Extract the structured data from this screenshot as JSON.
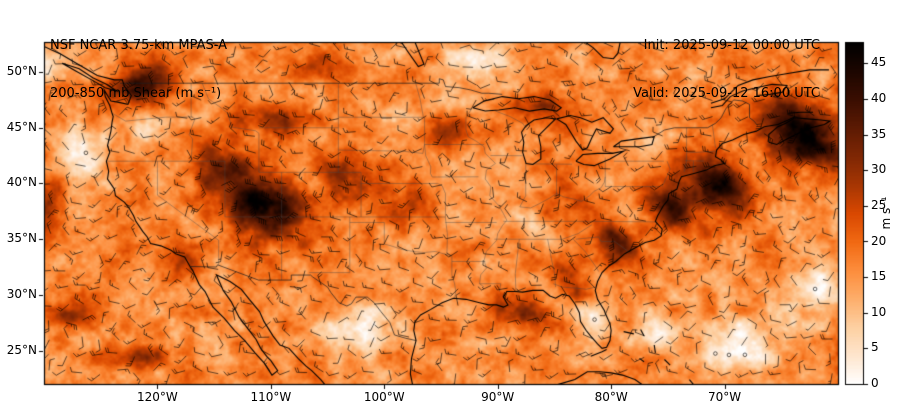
{
  "header": {
    "title_line1": "NSF NCAR 3.75-km MPAS-A",
    "title_line2": "200-850 mb Shear (m s⁻¹)",
    "init_label": "Init: 2025-09-12 00:00 UTC",
    "valid_label": "Valid: 2025-09-12 16:00 UTC"
  },
  "chart_data": {
    "type": "heatmap",
    "title": "200-850 mb Shear (m s⁻¹)",
    "model": "NSF NCAR 3.75-km MPAS-A",
    "init_time": "2025-09-12 00:00 UTC",
    "valid_time": "2025-09-12 16:00 UTC",
    "units": "m s⁻¹",
    "overlay": "wind barbs of 200-850 mb shear vector",
    "extent": {
      "lon_min": -130,
      "lon_max": -60,
      "lat_min": 22,
      "lat_max": 52.7
    },
    "xticks": {
      "labels": [
        "120°W",
        "110°W",
        "100°W",
        "90°W",
        "80°W",
        "70°W"
      ],
      "lons": [
        -120,
        -110,
        -100,
        -90,
        -80,
        -70
      ]
    },
    "yticks": {
      "labels": [
        "50°N",
        "45°N",
        "40°N",
        "35°N",
        "30°N",
        "25°N"
      ],
      "lats": [
        50,
        45,
        40,
        35,
        30,
        25
      ]
    },
    "colorbar": {
      "label": "m s⁻¹",
      "ticks": [
        0,
        5,
        10,
        15,
        20,
        25,
        30,
        35,
        40,
        45
      ],
      "vmin": 0,
      "vmax": 48,
      "stops": [
        {
          "v": 0,
          "c": "#ffffff"
        },
        {
          "v": 4,
          "c": "#fee6ce"
        },
        {
          "v": 8,
          "c": "#fdd0a2"
        },
        {
          "v": 12,
          "c": "#fdae6b"
        },
        {
          "v": 16,
          "c": "#fd8d3c"
        },
        {
          "v": 20,
          "c": "#f16913"
        },
        {
          "v": 24,
          "c": "#d94801"
        },
        {
          "v": 28,
          "c": "#a63603"
        },
        {
          "v": 32,
          "c": "#7f2704"
        },
        {
          "v": 36,
          "c": "#5c1a03"
        },
        {
          "v": 40,
          "c": "#3a0e01"
        },
        {
          "v": 44,
          "c": "#1c0600"
        },
        {
          "v": 48,
          "c": "#000000"
        }
      ]
    },
    "field": {
      "base": 16,
      "noise_large": 5,
      "noise_small": 3,
      "highs": [
        {
          "lon": -110.5,
          "lat": 37.8,
          "amp": 30,
          "sx": 3.6,
          "sy": 2.8,
          "rot": -25
        },
        {
          "lon": -114.5,
          "lat": 41.5,
          "amp": 18,
          "sx": 2.6,
          "sy": 2.2,
          "rot": -35
        },
        {
          "lon": -121.5,
          "lat": 48.8,
          "amp": 24,
          "sx": 2.6,
          "sy": 1.7,
          "rot": 20
        },
        {
          "lon": -110,
          "lat": 45.8,
          "amp": 13,
          "sx": 3.4,
          "sy": 1.5,
          "rot": -5
        },
        {
          "lon": -103.5,
          "lat": 40.8,
          "amp": 14,
          "sx": 2.8,
          "sy": 1.8,
          "rot": -30
        },
        {
          "lon": -99,
          "lat": 38.5,
          "amp": 10,
          "sx": 3,
          "sy": 2,
          "rot": -10
        },
        {
          "lon": -94.5,
          "lat": 44.6,
          "amp": 13,
          "sx": 2.6,
          "sy": 1.5,
          "rot": 15
        },
        {
          "lon": -86,
          "lat": 46.6,
          "amp": 13,
          "sx": 3,
          "sy": 1.5,
          "rot": -12
        },
        {
          "lon": -88,
          "lat": 28.3,
          "amp": 16,
          "sx": 2.6,
          "sy": 1.4,
          "rot": -25
        },
        {
          "lon": -84,
          "lat": 31.5,
          "amp": 14,
          "sx": 2.4,
          "sy": 1.3,
          "rot": -38
        },
        {
          "lon": -79.5,
          "lat": 34.5,
          "amp": 22,
          "sx": 2.4,
          "sy": 1.5,
          "rot": -42
        },
        {
          "lon": -74.5,
          "lat": 37.5,
          "amp": 22,
          "sx": 2.6,
          "sy": 1.7,
          "rot": -35
        },
        {
          "lon": -70.5,
          "lat": 40,
          "amp": 30,
          "sx": 3.2,
          "sy": 2.1,
          "rot": -32
        },
        {
          "lon": -63,
          "lat": 44.5,
          "amp": 34,
          "sx": 3.6,
          "sy": 2.6,
          "rot": -30
        },
        {
          "lon": -127.5,
          "lat": 28,
          "amp": 15,
          "sx": 2.4,
          "sy": 1.1,
          "rot": 12
        },
        {
          "lon": -122,
          "lat": 24.5,
          "amp": 14,
          "sx": 3,
          "sy": 1.2,
          "rot": 6
        },
        {
          "lon": -129.5,
          "lat": 38,
          "amp": 12,
          "sx": 1.3,
          "sy": 2.6,
          "rot": -15
        },
        {
          "lon": -118,
          "lat": 33,
          "amp": 10,
          "sx": 2,
          "sy": 1.4,
          "rot": -25
        },
        {
          "lon": -105.5,
          "lat": 50.5,
          "amp": 10,
          "sx": 3,
          "sy": 1.5,
          "rot": 5
        },
        {
          "lon": -84,
          "lat": 38.5,
          "amp": 8,
          "sx": 2.6,
          "sy": 1.8,
          "rot": -35
        }
      ],
      "lows": [
        {
          "lon": -126.5,
          "lat": 42.5,
          "amp": 15,
          "sx": 2.2,
          "sy": 2.4,
          "rot": 0
        },
        {
          "lon": -121,
          "lat": 44.5,
          "amp": 8,
          "sx": 1.8,
          "sy": 1.1,
          "rot": -10
        },
        {
          "lon": -102.5,
          "lat": 26.8,
          "amp": 15,
          "sx": 3,
          "sy": 2.1,
          "rot": 8
        },
        {
          "lon": -91.5,
          "lat": 50.8,
          "amp": 13,
          "sx": 3.2,
          "sy": 1.8,
          "rot": 0
        },
        {
          "lon": -92.5,
          "lat": 47.2,
          "amp": 8,
          "sx": 1.6,
          "sy": 1.1,
          "rot": 0
        },
        {
          "lon": -68.5,
          "lat": 25.5,
          "amp": 16,
          "sx": 3,
          "sy": 2.2,
          "rot": 10
        },
        {
          "lon": -76.5,
          "lat": 26.5,
          "amp": 10,
          "sx": 2.4,
          "sy": 1.4,
          "rot": 0
        },
        {
          "lon": -62.5,
          "lat": 30.5,
          "amp": 12,
          "sx": 2.6,
          "sy": 2.6,
          "rot": 0
        },
        {
          "lon": -86.5,
          "lat": 35.8,
          "amp": 8,
          "sx": 2,
          "sy": 1.2,
          "rot": -30
        },
        {
          "lon": -81.5,
          "lat": 28,
          "amp": 8,
          "sx": 1.6,
          "sy": 1.6,
          "rot": 0
        },
        {
          "lon": -75.5,
          "lat": 44.2,
          "amp": 9,
          "sx": 2.2,
          "sy": 1,
          "rot": 10
        },
        {
          "lon": -129.8,
          "lat": 50.5,
          "amp": 8,
          "sx": 1.6,
          "sy": 1.6,
          "rot": 0
        },
        {
          "lon": -99.5,
          "lat": 46.5,
          "amp": 6,
          "sx": 2.2,
          "sy": 1.3,
          "rot": 0
        }
      ]
    },
    "wind_barbs": {
      "spacing_px": 17,
      "full_barb_ms": 10,
      "half_barb_ms": 5,
      "calm_threshold_ms": 3
    }
  }
}
